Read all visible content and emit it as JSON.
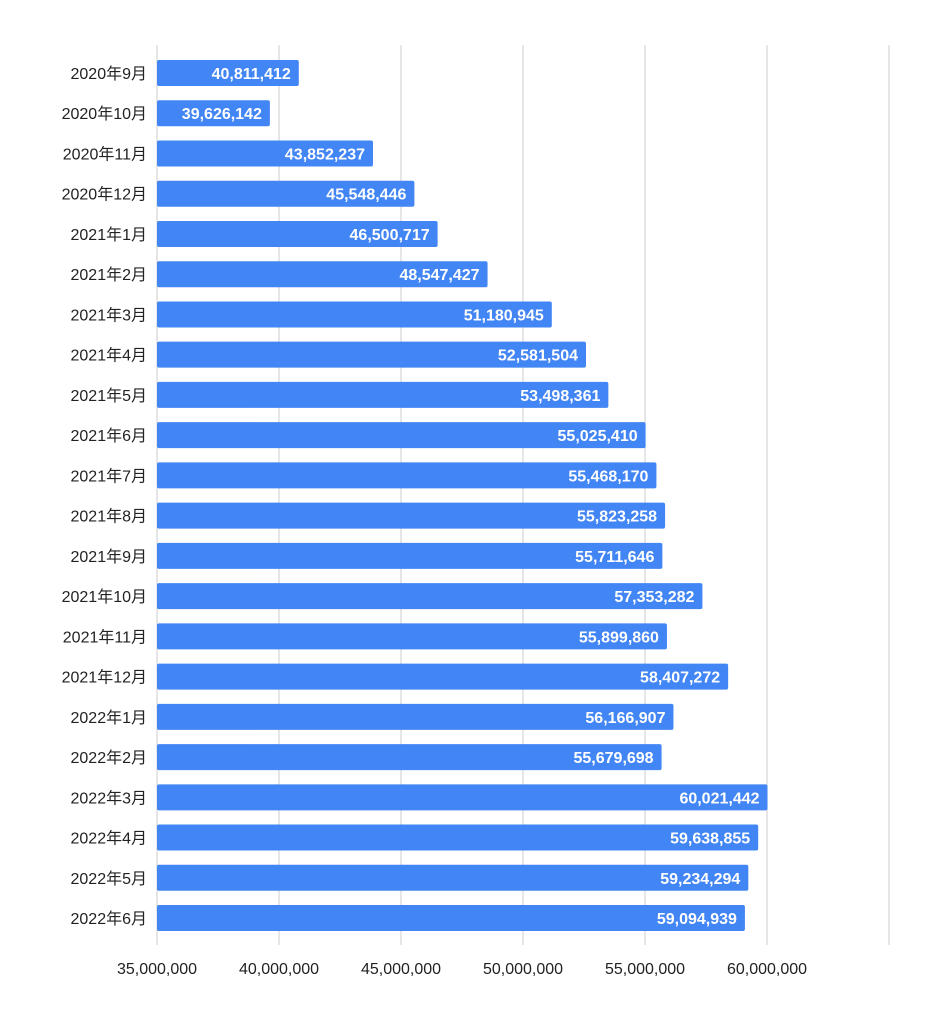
{
  "chart_data": {
    "type": "bar",
    "orientation": "horizontal",
    "title": "",
    "xlabel": "",
    "ylabel": "",
    "categories": [
      "2020年9月",
      "2020年10月",
      "2020年11月",
      "2020年12月",
      "2021年1月",
      "2021年2月",
      "2021年3月",
      "2021年4月",
      "2021年5月",
      "2021年6月",
      "2021年7月",
      "2021年8月",
      "2021年9月",
      "2021年10月",
      "2021年11月",
      "2021年12月",
      "2022年1月",
      "2022年2月",
      "2022年3月",
      "2022年4月",
      "2022年5月",
      "2022年6月"
    ],
    "values": [
      40811412,
      39626142,
      43852237,
      45548446,
      46500717,
      48547427,
      51180945,
      52581504,
      53498361,
      55025410,
      55468170,
      55823258,
      55711646,
      57353282,
      55899860,
      58407272,
      56166907,
      55679698,
      60021442,
      59638855,
      59234294,
      59094939
    ],
    "data_labels": [
      "40,811,412",
      "39,626,142",
      "43,852,237",
      "45,548,446",
      "46,500,717",
      "48,547,427",
      "51,180,945",
      "52,581,504",
      "53,498,361",
      "55,025,410",
      "55,468,170",
      "55,823,258",
      "55,711,646",
      "57,353,282",
      "55,899,860",
      "58,407,272",
      "56,166,907",
      "55,679,698",
      "60,021,442",
      "59,638,855",
      "59,234,294",
      "59,094,939"
    ],
    "xlim": [
      35000000,
      65000000
    ],
    "xticks": [
      35000000,
      40000000,
      45000000,
      50000000,
      55000000,
      60000000,
      65000000
    ],
    "xtick_labels": [
      "35,000,000",
      "40,000,000",
      "45,000,000",
      "50,000,000",
      "55,000,000",
      "60,000,000",
      ""
    ],
    "grid": true,
    "legend": "none",
    "colors": {
      "bar": "#4285f4",
      "gridline": "#cccccc",
      "tick_text": "#222222",
      "data_label_text": "#ffffff"
    }
  }
}
